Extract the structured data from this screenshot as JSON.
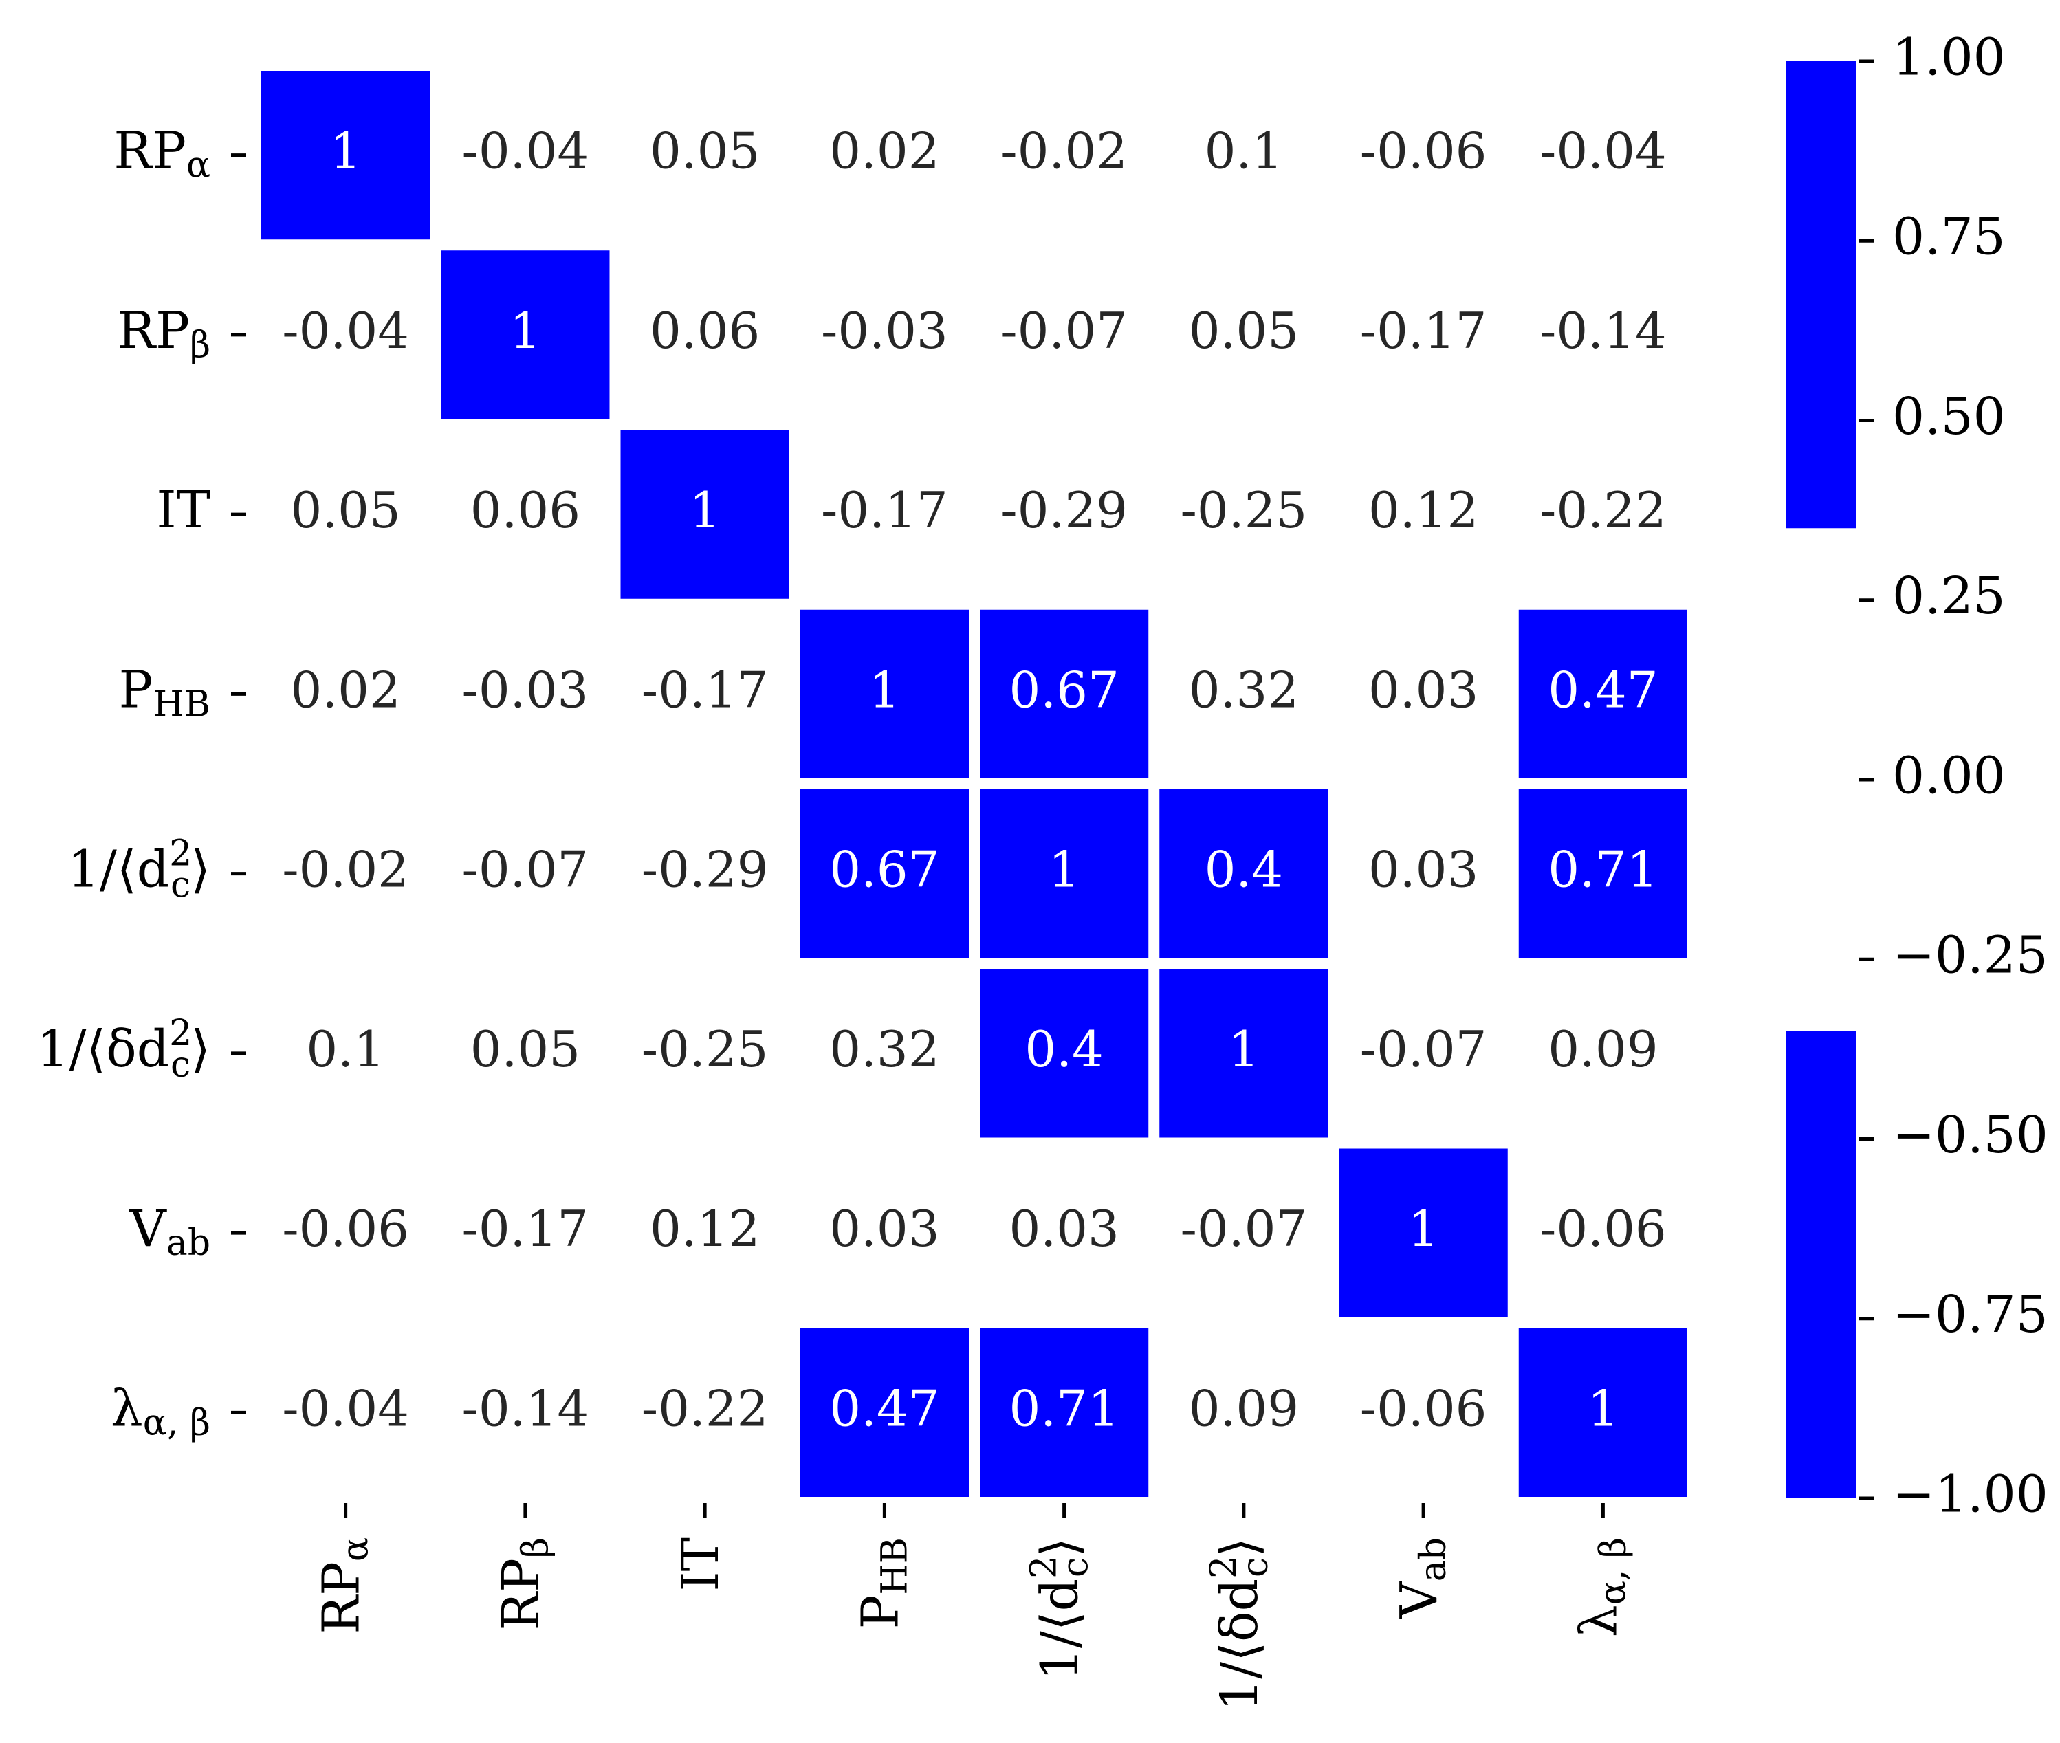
{
  "chart_data": {
    "type": "heatmap",
    "labels": [
      {
        "id": "rpa",
        "base": "RP",
        "sub": "α"
      },
      {
        "id": "rpb",
        "base": "RP",
        "sub": "β"
      },
      {
        "id": "it",
        "base": "IT",
        "sub": ""
      },
      {
        "id": "phb",
        "base": "P",
        "sub": "HB"
      },
      {
        "id": "invd2",
        "base": "1/⟨d",
        "sup": "2",
        "sub": "c",
        "tail": "⟩"
      },
      {
        "id": "invdd2",
        "base": "1/⟨δd",
        "sup": "2",
        "sub": "c",
        "tail": "⟩"
      },
      {
        "id": "vab",
        "base": "V",
        "sub": "ab"
      },
      {
        "id": "lab",
        "base": "λ",
        "sub": "α, β"
      }
    ],
    "matrix": [
      [
        "1",
        "-0.04",
        "0.05",
        "0.02",
        "-0.02",
        "0.1",
        "-0.06",
        "-0.04"
      ],
      [
        "-0.04",
        "1",
        "0.06",
        "-0.03",
        "-0.07",
        "0.05",
        "-0.17",
        "-0.14"
      ],
      [
        "0.05",
        "0.06",
        "1",
        "-0.17",
        "-0.29",
        "-0.25",
        "0.12",
        "-0.22"
      ],
      [
        "0.02",
        "-0.03",
        "-0.17",
        "1",
        "0.67",
        "0.32",
        "0.03",
        "0.47"
      ],
      [
        "-0.02",
        "-0.07",
        "-0.29",
        "0.67",
        "1",
        "0.4",
        "0.03",
        "0.71"
      ],
      [
        "0.1",
        "0.05",
        "-0.25",
        "0.32",
        "0.4",
        "1",
        "-0.07",
        "0.09"
      ],
      [
        "-0.06",
        "-0.17",
        "0.12",
        "0.03",
        "0.03",
        "-0.07",
        "1",
        "-0.06"
      ],
      [
        "-0.04",
        "-0.14",
        "-0.22",
        "0.47",
        "0.71",
        "0.09",
        "-0.06",
        "1"
      ]
    ],
    "highlight_rule": "|value| >= 0.35 shaded",
    "highlight_threshold": 0.35,
    "colors": {
      "cell_fill": "#0000ff",
      "cell_text_on_fill": "#ffffff",
      "cell_text": "#262626",
      "background": "#ffffff",
      "axis_text": "#000000"
    },
    "colorbar": {
      "vmin": -1.0,
      "vmax": 1.0,
      "ticks": [
        "1.00",
        "0.75",
        "0.50",
        "0.25",
        "0.00",
        "−0.25",
        "−0.50",
        "−0.75",
        "−1.00"
      ],
      "tick_values": [
        1.0,
        0.75,
        0.5,
        0.25,
        0.0,
        -0.25,
        -0.5,
        -0.75,
        -1.0
      ],
      "shaded_ranges": [
        [
          0.35,
          1.0
        ],
        [
          -1.0,
          -0.35
        ]
      ]
    },
    "grid": false,
    "legend": "colorbar right"
  }
}
